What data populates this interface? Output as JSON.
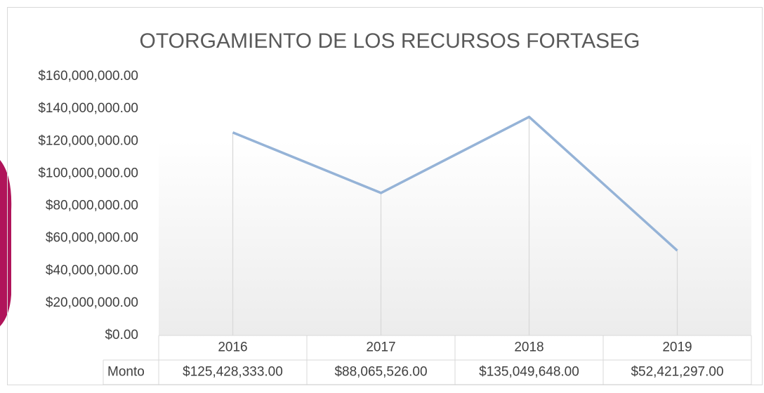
{
  "chart_data": {
    "type": "line",
    "title": "OTORGAMIENTO DE LOS RECURSOS FORTASEG",
    "categories": [
      "2016",
      "2017",
      "2018",
      "2019"
    ],
    "series": [
      {
        "name": "Monto",
        "color": "#95b3d7",
        "values": [
          125428333,
          88065526,
          135049648,
          52421297
        ],
        "value_labels": [
          "$125,428,333.00",
          "$88,065,526.00",
          "$135,049,648.00",
          "$52,421,297.00"
        ]
      }
    ],
    "ylim": [
      0,
      160000000
    ],
    "yticks": [
      {
        "value": 0,
        "label": "$0.00"
      },
      {
        "value": 20000000,
        "label": "$20,000,000.00"
      },
      {
        "value": 40000000,
        "label": "$40,000,000.00"
      },
      {
        "value": 60000000,
        "label": "$60,000,000.00"
      },
      {
        "value": 80000000,
        "label": "$80,000,000.00"
      },
      {
        "value": 100000000,
        "label": "$100,000,000.00"
      },
      {
        "value": 120000000,
        "label": "$120,000,000.00"
      },
      {
        "value": 140000000,
        "label": "$140,000,000.00"
      },
      {
        "value": 160000000,
        "label": "$160,000,000.00"
      }
    ],
    "drop_lines": true
  }
}
